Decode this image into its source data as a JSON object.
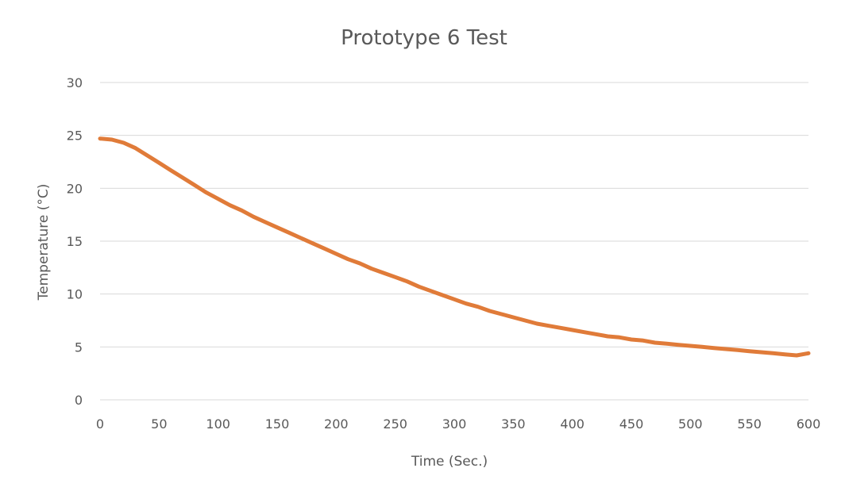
{
  "chart_data": {
    "type": "line",
    "title": "Prototype 6 Test",
    "xlabel": "Time (Sec.)",
    "ylabel": "Temperature  (°C)",
    "xlim": [
      0,
      600
    ],
    "ylim": [
      0,
      30
    ],
    "x_ticks": [
      "0",
      "50",
      "100",
      "150",
      "200",
      "250",
      "300",
      "350",
      "400",
      "450",
      "500",
      "550",
      "600"
    ],
    "y_ticks": [
      "0",
      "5",
      "10",
      "15",
      "20",
      "25",
      "30"
    ],
    "grid": "horizontal",
    "legend": "none",
    "series": [
      {
        "color": "#E07B39",
        "x": [
          0,
          10,
          20,
          30,
          40,
          50,
          60,
          70,
          80,
          90,
          100,
          110,
          120,
          130,
          140,
          150,
          160,
          170,
          180,
          190,
          200,
          210,
          220,
          230,
          240,
          250,
          260,
          270,
          280,
          290,
          300,
          310,
          320,
          330,
          340,
          350,
          360,
          370,
          380,
          390,
          400,
          410,
          420,
          430,
          440,
          450,
          460,
          470,
          480,
          490,
          500,
          510,
          520,
          530,
          540,
          550,
          560,
          570,
          580,
          590,
          600
        ],
        "y": [
          24.7,
          24.6,
          24.3,
          23.8,
          23.1,
          22.4,
          21.7,
          21.0,
          20.3,
          19.6,
          19.0,
          18.4,
          17.9,
          17.3,
          16.8,
          16.3,
          15.8,
          15.3,
          14.8,
          14.3,
          13.8,
          13.3,
          12.9,
          12.4,
          12.0,
          11.6,
          11.2,
          10.7,
          10.3,
          9.9,
          9.5,
          9.1,
          8.8,
          8.4,
          8.1,
          7.8,
          7.5,
          7.2,
          7.0,
          6.8,
          6.6,
          6.4,
          6.2,
          6.0,
          5.9,
          5.7,
          5.6,
          5.4,
          5.3,
          5.2,
          5.1,
          5.0,
          4.9,
          4.8,
          4.7,
          4.6,
          4.5,
          4.4,
          4.3,
          4.2,
          4.4
        ]
      }
    ]
  }
}
